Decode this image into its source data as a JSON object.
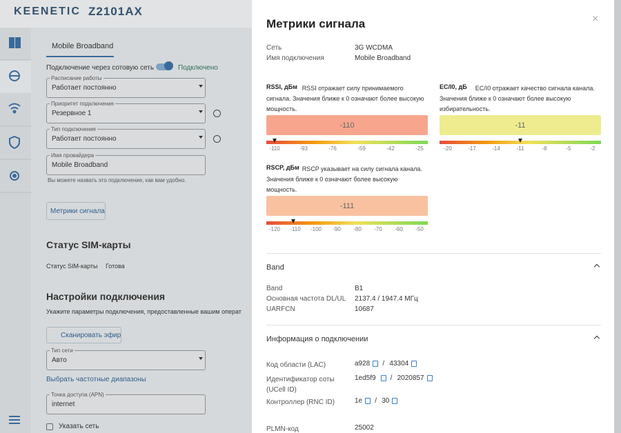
{
  "header": {
    "brand": "KEENETIC",
    "model": "Z2101AX"
  },
  "left": {
    "tab": "Mobile Broadband",
    "toggle_label": "Подключение через сотовую сеть",
    "toggle_status": "Подключено",
    "fields": [
      {
        "label": "Расписание работы",
        "value": "Работает постоянно"
      },
      {
        "label": "Приоритет подключения",
        "value": "Резервное 1"
      },
      {
        "label": "Тип подключения",
        "value": "Работает постоянно"
      },
      {
        "label": "Имя провайдера",
        "value": "Mobile Broadband"
      }
    ],
    "hint": "Вы можете назвать это подключение, как вам удобно.",
    "metrics_button": "Метрики сигнала",
    "sim_title": "Статус SIM-карты",
    "sim_label": "Статус SIM-карты",
    "sim_value": "Готова",
    "settings_title": "Настройки подключения",
    "settings_hint": "Укажите параметры подключения, предоставленные вашим операт",
    "scan_button": "Сканировать эфир",
    "network_field": {
      "label": "Тип сети",
      "value": "Авто"
    },
    "bands_link": "Выбрать частотные диапазоны",
    "apn_field": {
      "label": "Точка доступа (APN)",
      "value": "internet"
    },
    "checkbox": "Указать сеть"
  },
  "panel": {
    "title": "Метрики сигнала",
    "close": "×",
    "info": [
      {
        "label": "Сеть",
        "value": "3G WCDMA"
      },
      {
        "label": "Имя подключения",
        "value": "Mobile Broadband"
      }
    ],
    "metrics": [
      {
        "name": "RSSI, дБм",
        "desc": "RSSI отражает силу принимаемого сигнала. Значения ближе к 0 означают более высокую мощность.",
        "value": -110,
        "color": "#f7a68d",
        "ticks": [
          -110,
          -93,
          -76,
          -59,
          -42,
          -25
        ]
      },
      {
        "name": "EC/I0, дБ",
        "desc": "EC/I0 отражает качество сигнала канала. Значения ближе к 0 означают более высокую избирательность.",
        "value": -11,
        "color": "#eeec8e",
        "ticks": [
          -20,
          -17,
          -14,
          -11,
          -8,
          -5,
          -2
        ]
      },
      {
        "name": "RSCP, дБм",
        "desc": "RSCP указывает на силу сигнала канала. Значения ближе к 0 означают более высокую мощность.",
        "value": -111,
        "color": "#f9c19f",
        "ticks": [
          -120,
          -110,
          -100,
          -90,
          -80,
          -70,
          -60,
          -50
        ]
      }
    ],
    "band": {
      "title": "Band",
      "rows": [
        {
          "label": "Band",
          "value": "B1"
        },
        {
          "label": "Основная частота DL/UL",
          "value": "2137.4 / 1947.4 МГц"
        },
        {
          "label": "UARFCN",
          "value": "10687"
        }
      ]
    },
    "connection": {
      "title": "Информация о подключении",
      "separator": "/",
      "rows": [
        {
          "label": "Код области (LAC)",
          "values": [
            "a928",
            "43304"
          ]
        },
        {
          "label": "Идентификатор соты (UCell ID)",
          "values": [
            "1ed5f9",
            "2020857"
          ]
        },
        {
          "label": "Контроллер (RNC ID)",
          "values": [
            "1e",
            "30"
          ]
        },
        {
          "label": "PLMN-код",
          "values": [
            "25002"
          ]
        }
      ]
    }
  }
}
